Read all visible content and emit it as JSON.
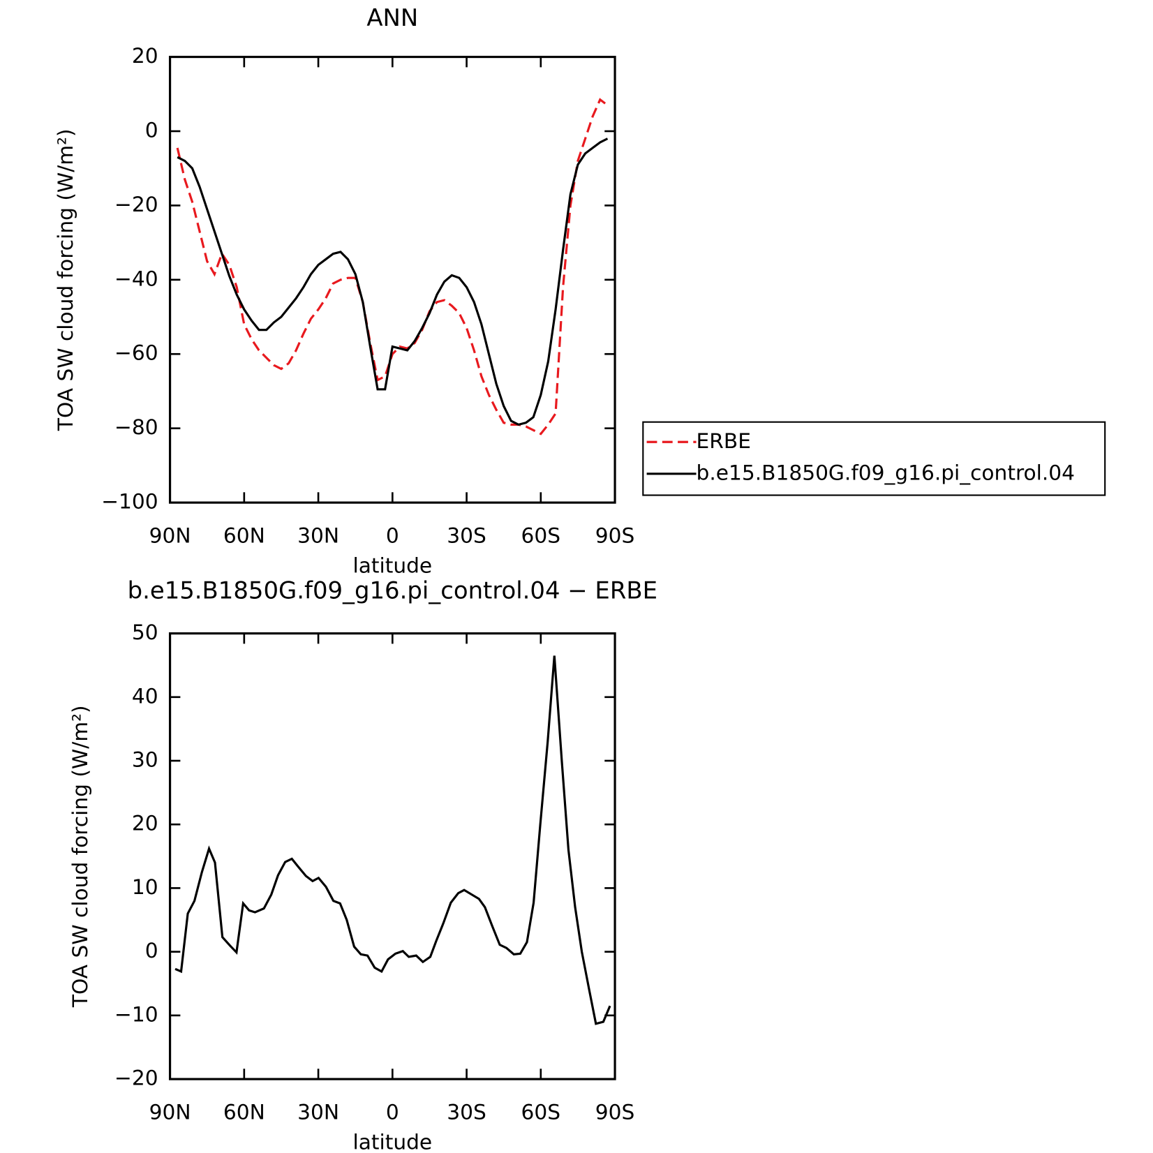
{
  "chart_data": [
    {
      "type": "line",
      "title": "ANN",
      "x_label": "latitude",
      "y_label": "TOA SW cloud forcing (W/m²)",
      "xlim": [
        90,
        -90
      ],
      "xticks": [
        {
          "value": 90,
          "label": "90N"
        },
        {
          "value": 60,
          "label": "60N"
        },
        {
          "value": 30,
          "label": "30N"
        },
        0,
        {
          "value": -30,
          "label": "30S"
        },
        {
          "value": -60,
          "label": "60S"
        },
        {
          "value": -90,
          "label": "90S"
        }
      ],
      "ylim": [
        -100,
        20
      ],
      "yticks": [
        {
          "value": -100,
          "label": "−100"
        },
        {
          "value": -80,
          "label": "−80"
        },
        {
          "value": -60,
          "label": "−60"
        },
        {
          "value": -40,
          "label": "−40"
        },
        {
          "value": -20,
          "label": "−20"
        },
        0,
        20
      ],
      "legend": "right",
      "x": [
        87,
        84,
        81,
        78,
        75,
        72,
        69,
        66,
        63,
        60,
        57,
        54,
        51,
        48,
        45,
        42,
        39,
        36,
        33,
        30,
        27,
        24,
        21,
        18,
        15,
        12,
        9,
        6,
        3,
        0,
        -3,
        -6,
        -9,
        -12,
        -15,
        -18,
        -21,
        -24,
        -27,
        -30,
        -33,
        -36,
        -39,
        -42,
        -45,
        -48,
        -51,
        -54,
        -57,
        -60,
        -63,
        -66,
        -69,
        -72,
        -75,
        -78,
        -81,
        -84,
        -87
      ],
      "series": [
        {
          "name": "ERBE",
          "color": "#e8191e",
          "line_style": "dashed",
          "values": [
            -4.5,
            -13,
            -19,
            -27,
            -35,
            -38.5,
            -33,
            -36,
            -42,
            -52,
            -56,
            -59,
            -61,
            -63,
            -64,
            -62.5,
            -59,
            -54.5,
            -50.5,
            -48,
            -45,
            -41,
            -40,
            -39.5,
            -39.5,
            -46,
            -57,
            -67,
            -66,
            -60,
            -58,
            -58.5,
            -57,
            -53.5,
            -48.5,
            -46,
            -45.5,
            -47,
            -49,
            -53,
            -59,
            -66,
            -71,
            -75,
            -78.5,
            -79,
            -79,
            -79.5,
            -80.5,
            -81.5,
            -79,
            -76,
            -42,
            -20,
            -8,
            -2,
            4,
            8.5,
            7
          ]
        },
        {
          "name": "b.e15.B1850G.f09_g16.pi_control.04",
          "color": "#000000",
          "line_style": "solid",
          "values": [
            -7,
            -8,
            -10,
            -15,
            -21,
            -27,
            -33,
            -39,
            -44,
            -48,
            -51,
            -53.5,
            -53.5,
            -51.5,
            -50,
            -47.5,
            -45,
            -42,
            -38.5,
            -36,
            -34.5,
            -33,
            -32.5,
            -34.5,
            -38.5,
            -46,
            -58,
            -69.5,
            -69.5,
            -58,
            -58.5,
            -59,
            -56.5,
            -53,
            -49,
            -44,
            -40.5,
            -38.8,
            -39.5,
            -42,
            -46,
            -52,
            -60,
            -68,
            -74,
            -78,
            -79,
            -78.5,
            -77,
            -71,
            -62,
            -48,
            -32,
            -17,
            -9,
            -6,
            -4.5,
            -3,
            -2
          ]
        }
      ]
    },
    {
      "type": "line",
      "title": "b.e15.B1850G.f09_g16.pi_control.04 − ERBE",
      "x_label": "latitude",
      "y_label": "TOA SW cloud forcing (W/m²)",
      "xlim": [
        90,
        -90
      ],
      "xticks": [
        {
          "value": 90,
          "label": "90N"
        },
        {
          "value": 60,
          "label": "60N"
        },
        {
          "value": 30,
          "label": "30N"
        },
        0,
        {
          "value": -30,
          "label": "30S"
        },
        {
          "value": -60,
          "label": "60S"
        },
        {
          "value": -90,
          "label": "90S"
        }
      ],
      "ylim": [
        -20,
        50
      ],
      "yticks": [
        {
          "value": -20,
          "label": "−20"
        },
        {
          "value": -10,
          "label": "−10"
        },
        0,
        10,
        20,
        30,
        40,
        50
      ],
      "x": [
        87.9,
        85.5,
        82.8,
        80.1,
        77.1,
        74.2,
        71.8,
        68.8,
        65.8,
        63.1,
        60.4,
        58.0,
        55.6,
        52.0,
        49.0,
        46.3,
        43.4,
        40.7,
        38.0,
        35.0,
        32.3,
        29.9,
        26.9,
        23.9,
        21.2,
        18.5,
        15.5,
        12.8,
        10.1,
        7.2,
        4.4,
        1.8,
        -1.2,
        -4.2,
        -6.6,
        -9.6,
        -12.3,
        -15.3,
        -17.7,
        -20.6,
        -23.6,
        -26.6,
        -29.0,
        -32.0,
        -35.0,
        -37.4,
        -40.4,
        -43.4,
        -46.1,
        -49.1,
        -51.7,
        -54.4,
        -57.1,
        -59.8,
        -62.8,
        -65.5,
        -68.5,
        -71.2,
        -73.9,
        -76.6,
        -79.6,
        -82.3,
        -85.3,
        -88.0
      ],
      "series": [
        {
          "color": "#000000",
          "line_style": "solid",
          "values": [
            -2.7,
            -3.1,
            6,
            8,
            12.5,
            16.2,
            14,
            2.3,
            1,
            -0.1,
            7.6,
            6.5,
            6.2,
            6.8,
            9,
            12,
            14.1,
            14.6,
            13.3,
            11.9,
            11.1,
            11.6,
            10.2,
            8,
            7.6,
            5,
            0.8,
            -0.4,
            -0.6,
            -2.5,
            -3.1,
            -1.2,
            -0.3,
            0.1,
            -0.8,
            -0.6,
            -1.6,
            -0.8,
            1.7,
            4.5,
            7.7,
            9.2,
            9.7,
            9,
            8.3,
            7,
            4,
            1.1,
            0.6,
            -0.4,
            -0.3,
            1.5,
            7.7,
            20,
            33,
            46.5,
            30,
            16,
            7,
            0,
            -6,
            -11.3,
            -11,
            -8.5
          ]
        }
      ]
    }
  ]
}
